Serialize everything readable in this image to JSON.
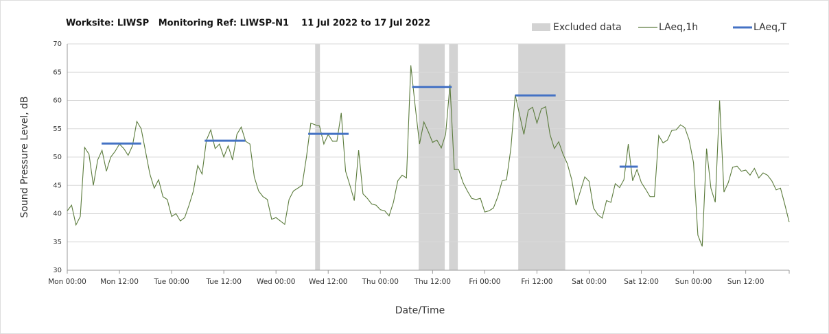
{
  "chart_data": {
    "type": "line",
    "title": "Worksite: LIWSP   Monitoring Ref: LIWSP-N1    11 Jul 2022 to 17 Jul 2022",
    "x_label": "Date/Time",
    "y_label": "Sound Pressure Level, dB",
    "xlim": [
      0,
      166
    ],
    "ylim": [
      30,
      70
    ],
    "yticks": [
      30,
      35,
      40,
      45,
      50,
      55,
      60,
      65,
      70
    ],
    "xticks": [
      {
        "value": 0,
        "label": "Mon 00:00"
      },
      {
        "value": 12,
        "label": "Mon 12:00"
      },
      {
        "value": 24,
        "label": "Tue 00:00"
      },
      {
        "value": 36,
        "label": "Tue 12:00"
      },
      {
        "value": 48,
        "label": "Wed 00:00"
      },
      {
        "value": 60,
        "label": "Wed 12:00"
      },
      {
        "value": 72,
        "label": "Thu 00:00"
      },
      {
        "value": 84,
        "label": "Thu 12:00"
      },
      {
        "value": 96,
        "label": "Fri 00:00"
      },
      {
        "value": 108,
        "label": "Fri 12:00"
      },
      {
        "value": 120,
        "label": "Sat 00:00"
      },
      {
        "value": 132,
        "label": "Sat 12:00"
      },
      {
        "value": 144,
        "label": "Sun 00:00"
      },
      {
        "value": 156,
        "label": "Sun 12:00"
      }
    ],
    "grid": true,
    "excluded": {
      "name": "Excluded data",
      "color": "#d3d3d3",
      "ranges": [
        [
          57,
          58.1
        ],
        [
          80.8,
          86.8
        ],
        [
          87.8,
          89.8
        ],
        [
          103.7,
          114.5
        ]
      ]
    },
    "series": [
      {
        "name": "LAeq,1h",
        "color": "#5b7b3c",
        "x": [
          0,
          1,
          2,
          3,
          4,
          5,
          6,
          7,
          8,
          9,
          10,
          11,
          12,
          13,
          14,
          15,
          16,
          17,
          18,
          19,
          20,
          21,
          22,
          23,
          24,
          25,
          26,
          27,
          28,
          29,
          30,
          31,
          32,
          33,
          34,
          35,
          36,
          37,
          38,
          39,
          40,
          41,
          42,
          43,
          44,
          45,
          46,
          47,
          48,
          49,
          50,
          51,
          52,
          53,
          54,
          55,
          56,
          57,
          58,
          59,
          60,
          61,
          62,
          63,
          64,
          65,
          66,
          67,
          68,
          69,
          70,
          71,
          72,
          73,
          74,
          75,
          76,
          77,
          78,
          79,
          80,
          81,
          82,
          83,
          84,
          85,
          86,
          87,
          88,
          89,
          90,
          91,
          92,
          93,
          94,
          95,
          96,
          97,
          98,
          99,
          100,
          101,
          102,
          103,
          104,
          105,
          106,
          107,
          108,
          109,
          110,
          111,
          112,
          113,
          114,
          115,
          116,
          117,
          118,
          119,
          120,
          121,
          122,
          123,
          124,
          125,
          126,
          127,
          128,
          129,
          130,
          131,
          132,
          133,
          134,
          135,
          136,
          137,
          138,
          139,
          140,
          141,
          142,
          143,
          144,
          145,
          146,
          147,
          148,
          149,
          150,
          151,
          152,
          153,
          154,
          155,
          156,
          157,
          158,
          159,
          160,
          161,
          162,
          163,
          164,
          165,
          166
        ],
        "values": [
          40.5,
          41.5,
          38,
          39.5,
          51.7,
          50.5,
          45,
          49.5,
          51.2,
          47.5,
          50,
          51,
          52.3,
          51.5,
          50.3,
          52,
          56.3,
          55,
          51,
          47,
          44.5,
          46,
          43,
          42.5,
          39.5,
          40,
          38.7,
          39.3,
          41.5,
          44,
          48.5,
          47,
          53,
          54.8,
          51.5,
          52.3,
          50,
          52,
          49.5,
          54,
          55.3,
          52.8,
          52.3,
          46.5,
          44,
          43,
          42.5,
          39,
          39.3,
          38.7,
          38.1,
          42.5,
          44,
          44.5,
          45,
          50,
          56,
          55.7,
          55.5,
          52.3,
          54,
          52.8,
          52.8,
          57.8,
          47.5,
          45,
          42.3,
          51.2,
          43.5,
          42.7,
          41.7,
          41.5,
          40.7,
          40.5,
          39.6,
          42,
          45.8,
          46.8,
          46.3,
          66.2,
          59,
          52.3,
          56.2,
          54.5,
          52.6,
          53,
          51.6,
          54,
          62.8,
          47.8,
          47.8,
          45.5,
          44,
          42.7,
          42.5,
          42.7,
          40.3,
          40.5,
          41,
          43,
          45.8,
          46,
          51.5,
          61,
          57.5,
          54,
          58.3,
          58.8,
          56,
          58.5,
          58.9,
          54,
          51.5,
          52.7,
          50.5,
          48.8,
          46,
          41.5,
          44,
          46.5,
          45.7,
          41,
          39.8,
          39.2,
          42.3,
          42,
          45.3,
          44.6,
          46,
          52.3,
          45.8,
          47.8,
          45.5,
          44.3,
          43,
          43,
          53.8,
          52.5,
          53,
          54.7,
          54.8,
          55.7,
          55.2,
          53,
          49,
          36.2,
          34.2,
          51.5,
          44.5,
          42,
          60,
          43.8,
          45.5,
          48.2,
          48.4,
          47.5,
          47.7,
          46.8,
          48,
          46.3,
          47.2,
          46.8,
          45.8,
          44.2,
          44.5,
          41.6,
          38.5
        ]
      },
      {
        "name": "LAeq,T",
        "color": "#4472c4",
        "segments": [
          {
            "start": 7.9,
            "end": 17,
            "value": 52.4
          },
          {
            "start": 31.6,
            "end": 40.9,
            "value": 52.9
          },
          {
            "start": 55.4,
            "end": 64.7,
            "value": 54.1
          },
          {
            "start": 79.3,
            "end": 88.4,
            "value": 62.4
          },
          {
            "start": 103,
            "end": 112.3,
            "value": 60.9
          },
          {
            "start": 127,
            "end": 131.2,
            "value": 48.3
          }
        ]
      }
    ]
  }
}
